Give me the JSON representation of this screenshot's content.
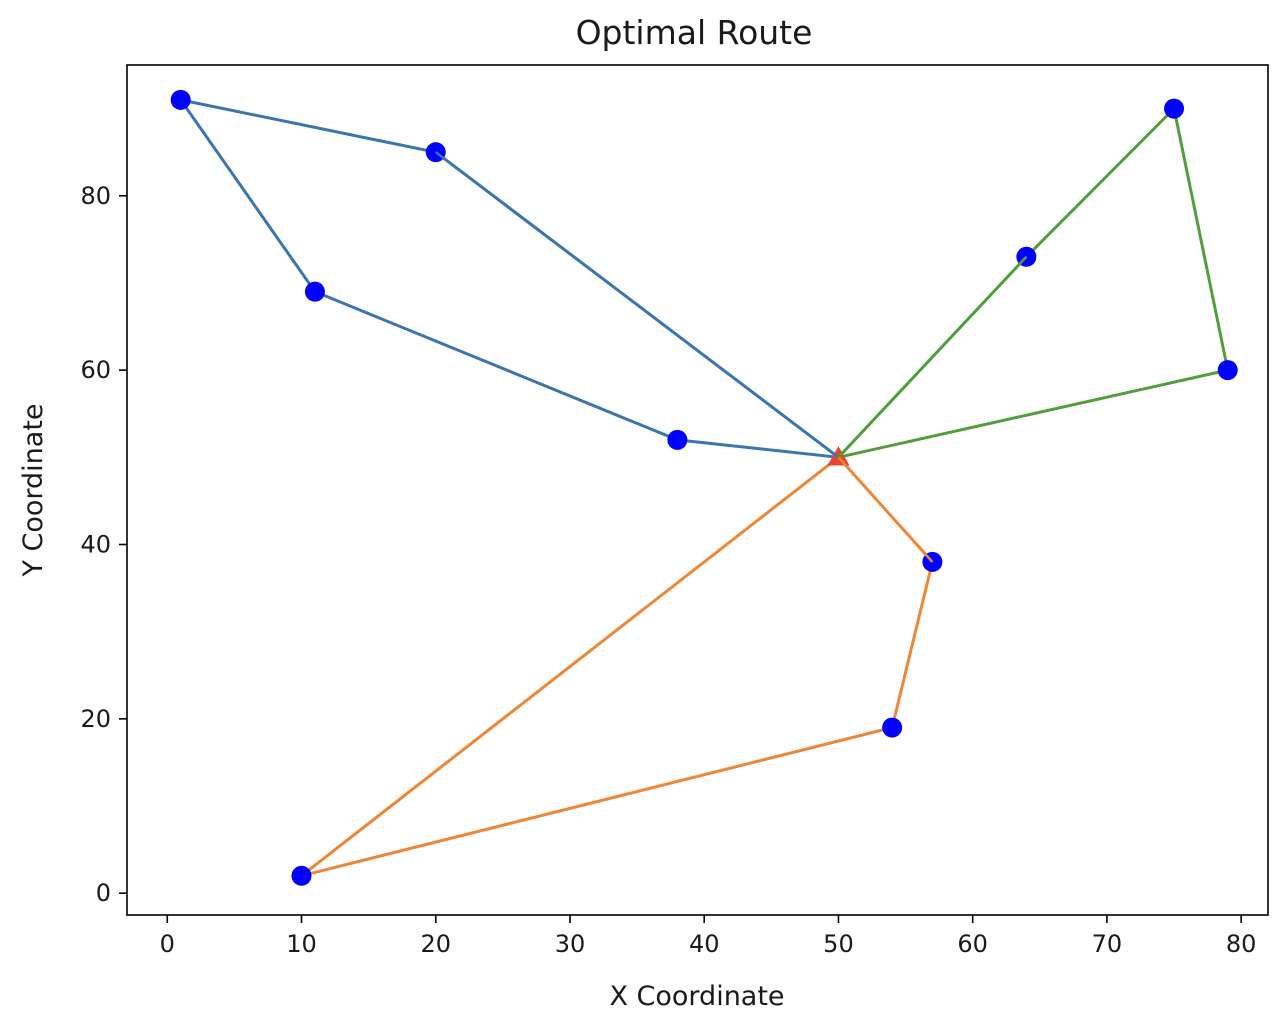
{
  "chart_data": {
    "type": "scatter",
    "title": "Optimal Route",
    "xlabel": "X Coordinate",
    "ylabel": "Y Coordinate",
    "xlim": [
      -3,
      82
    ],
    "ylim": [
      -2.5,
      95
    ],
    "x_ticks": [
      0,
      10,
      20,
      30,
      40,
      50,
      60,
      70,
      80
    ],
    "y_ticks": [
      0,
      20,
      40,
      60,
      80
    ],
    "grid": false,
    "legend": "none",
    "depot": {
      "x": 50,
      "y": 50,
      "color": "#e8432b",
      "marker": "triangle"
    },
    "customers": {
      "color": "#0000ff",
      "points": [
        {
          "x": 1,
          "y": 91
        },
        {
          "x": 20,
          "y": 85
        },
        {
          "x": 11,
          "y": 69
        },
        {
          "x": 38,
          "y": 52
        },
        {
          "x": 75,
          "y": 90
        },
        {
          "x": 64,
          "y": 73
        },
        {
          "x": 79,
          "y": 60
        },
        {
          "x": 57,
          "y": 38
        },
        {
          "x": 54,
          "y": 19
        },
        {
          "x": 10,
          "y": 2
        }
      ]
    },
    "routes": [
      {
        "color": "#3b75af",
        "points": [
          [
            50,
            50
          ],
          [
            20,
            85
          ],
          [
            1,
            91
          ],
          [
            11,
            69
          ],
          [
            38,
            52
          ],
          [
            50,
            50
          ]
        ]
      },
      {
        "color": "#ef8636",
        "points": [
          [
            50,
            50
          ],
          [
            57,
            38
          ],
          [
            54,
            19
          ],
          [
            10,
            2
          ],
          [
            50,
            50
          ]
        ]
      },
      {
        "color": "#519e3e",
        "points": [
          [
            50,
            50
          ],
          [
            64,
            73
          ],
          [
            75,
            90
          ],
          [
            79,
            60
          ],
          [
            50,
            50
          ]
        ]
      }
    ]
  }
}
